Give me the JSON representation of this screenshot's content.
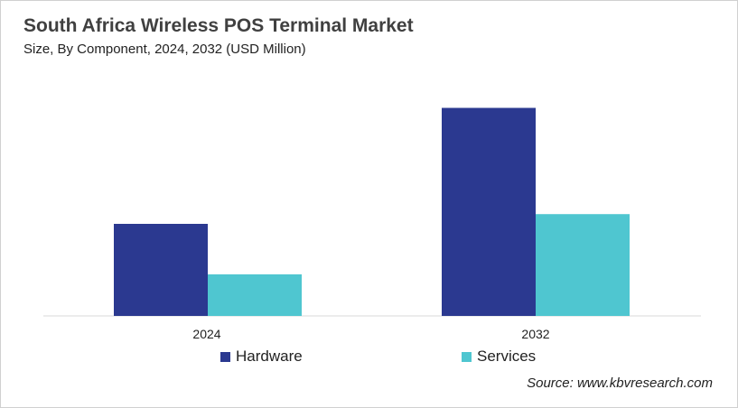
{
  "chart_data": {
    "type": "bar",
    "title": "South Africa Wireless POS Terminal Market",
    "subtitle": "Size, By Component, 2024, 2032 (USD Million)",
    "categories": [
      "2024",
      "2032"
    ],
    "series": [
      {
        "name": "Hardware",
        "color": "#2b3990",
        "values": [
          104,
          235
        ]
      },
      {
        "name": "Services",
        "color": "#4fc6d0",
        "values": [
          47,
          115
        ]
      }
    ],
    "ylim": [
      0,
      260
    ],
    "grid": false,
    "y_axis_shown": false,
    "legend_position": "bottom",
    "source": "Source: www.kbvresearch.com"
  }
}
